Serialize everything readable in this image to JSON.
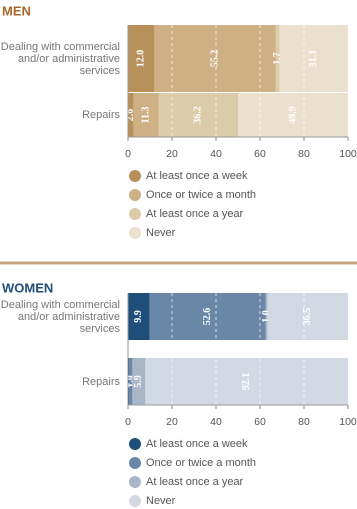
{
  "chart_data": [
    {
      "type": "bar",
      "title": "MEN",
      "title_color": "#a86a2c",
      "categories": [
        "Dealing with commercial and/or administrative services",
        "Repairs"
      ],
      "series": [
        {
          "name": "At least once a week",
          "color": "#b8905a",
          "values": [
            12.0,
            2.6
          ],
          "value_labels": [
            "12.0",
            "2.6"
          ]
        },
        {
          "name": "Once or twice a month",
          "color": "#cdb083",
          "values": [
            55.2,
            11.3
          ],
          "value_labels": [
            "55.2",
            "11.3"
          ]
        },
        {
          "name": "At least once a year",
          "color": "#dccba9",
          "values": [
            1.7,
            36.2
          ],
          "value_labels": [
            "1.7",
            "36.2"
          ]
        },
        {
          "name": "Never",
          "color": "#ebe0cd",
          "values": [
            31.1,
            49.9
          ],
          "value_labels": [
            "31.1",
            "49.9"
          ]
        }
      ],
      "xlim": [
        0,
        100
      ],
      "xticks": [
        0,
        20,
        40,
        60,
        80,
        100
      ],
      "grid": true
    },
    {
      "type": "bar",
      "title": "WOMEN",
      "title_color": "#1f4e79",
      "categories": [
        "Dealing with commercial and/or administrative services",
        "Repairs"
      ],
      "series": [
        {
          "name": "At least once a week",
          "color": "#1e4e79",
          "values": [
            9.9,
            0.6
          ],
          "value_labels": [
            "9.9",
            "0.6"
          ]
        },
        {
          "name": "Once or twice a month",
          "color": "#6b87a8",
          "values": [
            52.6,
            1.4
          ],
          "value_labels": [
            "52.6",
            "1.4"
          ]
        },
        {
          "name": "At least once a year",
          "color": "#a9b6c8",
          "values": [
            1.0,
            5.9
          ],
          "value_labels": [
            "1.0",
            "5.9"
          ]
        },
        {
          "name": "Never",
          "color": "#d3d9e3",
          "values": [
            36.5,
            92.1
          ],
          "value_labels": [
            "36.5",
            "92.1"
          ]
        }
      ],
      "xlim": [
        0,
        100
      ],
      "xticks": [
        0,
        20,
        40,
        60,
        80,
        100
      ],
      "grid": true
    }
  ]
}
